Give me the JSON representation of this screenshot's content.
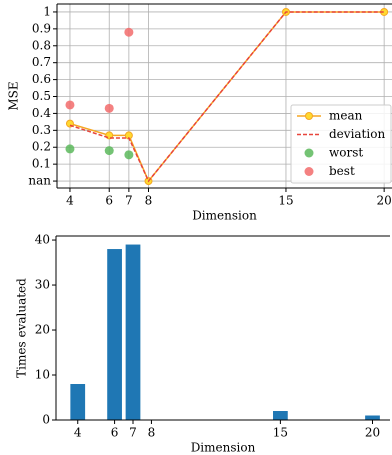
{
  "chart_data": [
    {
      "type": "line",
      "y_label": "MSE",
      "x_label": "Dimension",
      "xlim": [
        3.34,
        20.4
      ],
      "xticks": [
        4,
        6,
        7,
        8,
        15,
        20
      ],
      "ylim": [
        -0.041,
        1.047
      ],
      "yticks": [
        {
          "value": 0,
          "label": "nan"
        },
        0.1,
        0.2,
        0.3,
        0.4,
        0.5,
        0.6,
        0.7,
        0.8,
        0.9,
        1.0
      ],
      "grid": true,
      "legend": "lower right",
      "x": [
        4,
        6,
        7,
        8,
        15,
        20
      ],
      "series": [
        {
          "name": "mean",
          "color": "#f5a623",
          "marker_color": "#ffd92f",
          "style": "line-marker",
          "values": [
            0.34,
            0.27,
            0.27,
            0,
            1.0,
            1.0
          ]
        },
        {
          "name": "deviation",
          "color": "#e8453c",
          "style": "dashed",
          "values": [
            0.33,
            0.255,
            0.255,
            0,
            1.0,
            1.0
          ]
        },
        {
          "name": "worst",
          "color": "#5cb85c",
          "style": "scatter",
          "values": [
            0.19,
            0.18,
            0.155,
            null,
            null,
            null
          ]
        },
        {
          "name": "best",
          "color": "#f26b6b",
          "style": "scatter",
          "values": [
            0.45,
            0.43,
            0.88,
            null,
            null,
            null
          ]
        }
      ]
    },
    {
      "type": "bar",
      "y_label": "Times evaluated",
      "x_label": "Dimension",
      "xlim": [
        2.82,
        20.95
      ],
      "xticks": [
        4,
        6,
        7,
        8,
        15,
        20
      ],
      "ylim": [
        0,
        40.9
      ],
      "yticks": [
        0,
        10,
        20,
        30,
        40
      ],
      "x": [
        4,
        6,
        7,
        8,
        15,
        20
      ],
      "values": [
        8,
        38,
        39,
        0,
        2,
        1
      ],
      "color": "#1f77b4"
    }
  ]
}
